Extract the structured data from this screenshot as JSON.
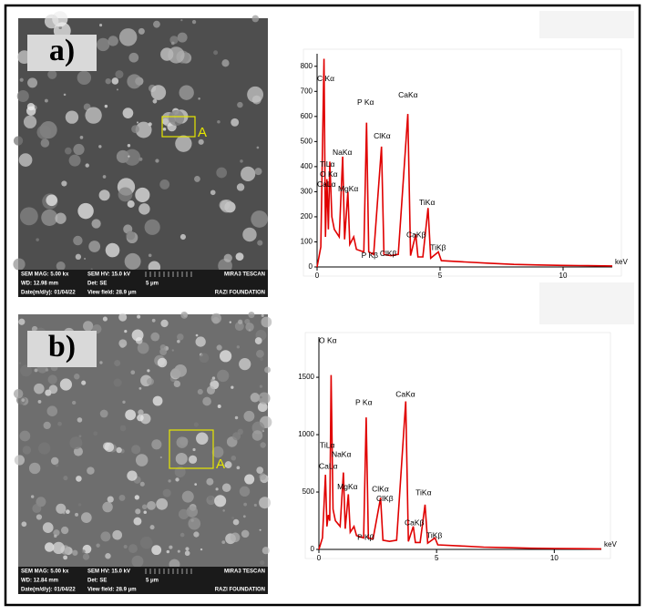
{
  "panels": [
    {
      "label": "a)",
      "marker": "A",
      "info": [
        "SEM MAG: 5.00 kx",
        "SEM HV: 15.0 kV",
        "MIRA3 TESCAN",
        "WD: 12.98 mm",
        "Det: SE",
        "5 μm",
        "Date(m/d/y): 01/04/22",
        "View field: 28.9 μm",
        "RAZI FOUNDATION"
      ]
    },
    {
      "label": "b)",
      "marker": "A",
      "info": [
        "SEM MAG: 5.00 kx",
        "SEM HV: 15.0 kV",
        "MIRA3 TESCAN",
        "WD: 12.84 mm",
        "Det: SE",
        "5 μm",
        "Date(m/d/y): 01/04/22",
        "View field: 28.9 μm",
        "RAZI FOUNDATION"
      ]
    }
  ],
  "chart_data": [
    {
      "type": "line",
      "x_label": "keV",
      "color": "#e00000",
      "x": [
        0,
        0.15,
        0.28,
        0.34,
        0.4,
        0.46,
        0.52,
        0.6,
        0.7,
        0.9,
        1.04,
        1.12,
        1.25,
        1.33,
        1.49,
        1.6,
        1.9,
        2.01,
        2.1,
        2.3,
        2.62,
        2.72,
        3.0,
        3.3,
        3.69,
        3.8,
        4.01,
        4.1,
        4.3,
        4.51,
        4.62,
        4.93,
        5.05,
        6,
        7,
        8,
        9,
        10,
        11,
        12
      ],
      "values": [
        0,
        80,
        830,
        120,
        350,
        150,
        420,
        200,
        150,
        120,
        440,
        110,
        300,
        90,
        120,
        70,
        60,
        575,
        60,
        50,
        480,
        50,
        45,
        50,
        610,
        45,
        130,
        40,
        40,
        235,
        35,
        60,
        25,
        20,
        15,
        10,
        8,
        6,
        5,
        4
      ],
      "xlim": [
        0,
        12
      ],
      "xticks": [
        0,
        5,
        10
      ],
      "ylim": [
        0,
        850
      ],
      "yticks": [
        0,
        100,
        200,
        300,
        400,
        500,
        600,
        700,
        800
      ],
      "annotations": [
        {
          "text": "C Kα",
          "x": 0,
          "y": 750
        },
        {
          "text": "P Kα",
          "x": 1.63,
          "y": 655
        },
        {
          "text": "CaKα",
          "x": 3.3,
          "y": 684
        },
        {
          "text": "ClKα",
          "x": 2.3,
          "y": 520
        },
        {
          "text": "NaKα",
          "x": 0.63,
          "y": 455
        },
        {
          "text": "TiLα",
          "x": 0.11,
          "y": 407
        },
        {
          "text": "O Kα",
          "x": 0.11,
          "y": 367
        },
        {
          "text": "CaLα",
          "x": 0,
          "y": 327
        },
        {
          "text": "MgKα",
          "x": 0.85,
          "y": 309
        },
        {
          "text": "TiKα",
          "x": 4.15,
          "y": 255
        },
        {
          "text": "CaKβ",
          "x": 3.63,
          "y": 127
        },
        {
          "text": "TiKβ",
          "x": 4.6,
          "y": 76
        },
        {
          "text": "P Kβ",
          "x": 1.8,
          "y": 44
        },
        {
          "text": "ClKβ",
          "x": 2.55,
          "y": 51
        }
      ]
    },
    {
      "type": "line",
      "x_label": "keV",
      "color": "#e00000",
      "x": [
        0,
        0.15,
        0.28,
        0.34,
        0.4,
        0.46,
        0.52,
        0.6,
        0.7,
        0.9,
        1.04,
        1.12,
        1.25,
        1.33,
        1.49,
        1.6,
        1.9,
        2.01,
        2.1,
        2.3,
        2.62,
        2.72,
        3.0,
        3.3,
        3.69,
        3.8,
        4.01,
        4.1,
        4.3,
        4.51,
        4.62,
        4.93,
        5.05,
        6,
        7,
        8,
        9,
        10,
        11,
        12
      ],
      "values": [
        0,
        100,
        650,
        200,
        300,
        250,
        1520,
        350,
        250,
        200,
        670,
        180,
        480,
        150,
        200,
        120,
        100,
        1150,
        100,
        90,
        450,
        80,
        70,
        80,
        1290,
        70,
        200,
        60,
        60,
        390,
        55,
        100,
        40,
        30,
        20,
        15,
        10,
        8,
        6,
        5
      ],
      "xlim": [
        0,
        12
      ],
      "xticks": [
        0,
        5,
        10
      ],
      "ylim": [
        0,
        1850
      ],
      "yticks": [
        0,
        500,
        1000,
        1500
      ],
      "annotations": [
        {
          "text": "O Kα",
          "x": 0,
          "y": 1817
        },
        {
          "text": "TiLα",
          "x": 0.04,
          "y": 905
        },
        {
          "text": "NaKα",
          "x": 0.54,
          "y": 825
        },
        {
          "text": "CaLα",
          "x": 0,
          "y": 722
        },
        {
          "text": "MgKα",
          "x": 0.78,
          "y": 540
        },
        {
          "text": "P Kα",
          "x": 1.55,
          "y": 1278
        },
        {
          "text": "CaKα",
          "x": 3.26,
          "y": 1349
        },
        {
          "text": "ClKα",
          "x": 2.25,
          "y": 524
        },
        {
          "text": "ClKβ",
          "x": 2.44,
          "y": 437
        },
        {
          "text": "TiKα",
          "x": 4.11,
          "y": 492
        },
        {
          "text": "CaKβ",
          "x": 3.64,
          "y": 230
        },
        {
          "text": "TiKβ",
          "x": 4.57,
          "y": 119
        },
        {
          "text": "P Kβ",
          "x": 1.63,
          "y": 103
        }
      ]
    }
  ]
}
